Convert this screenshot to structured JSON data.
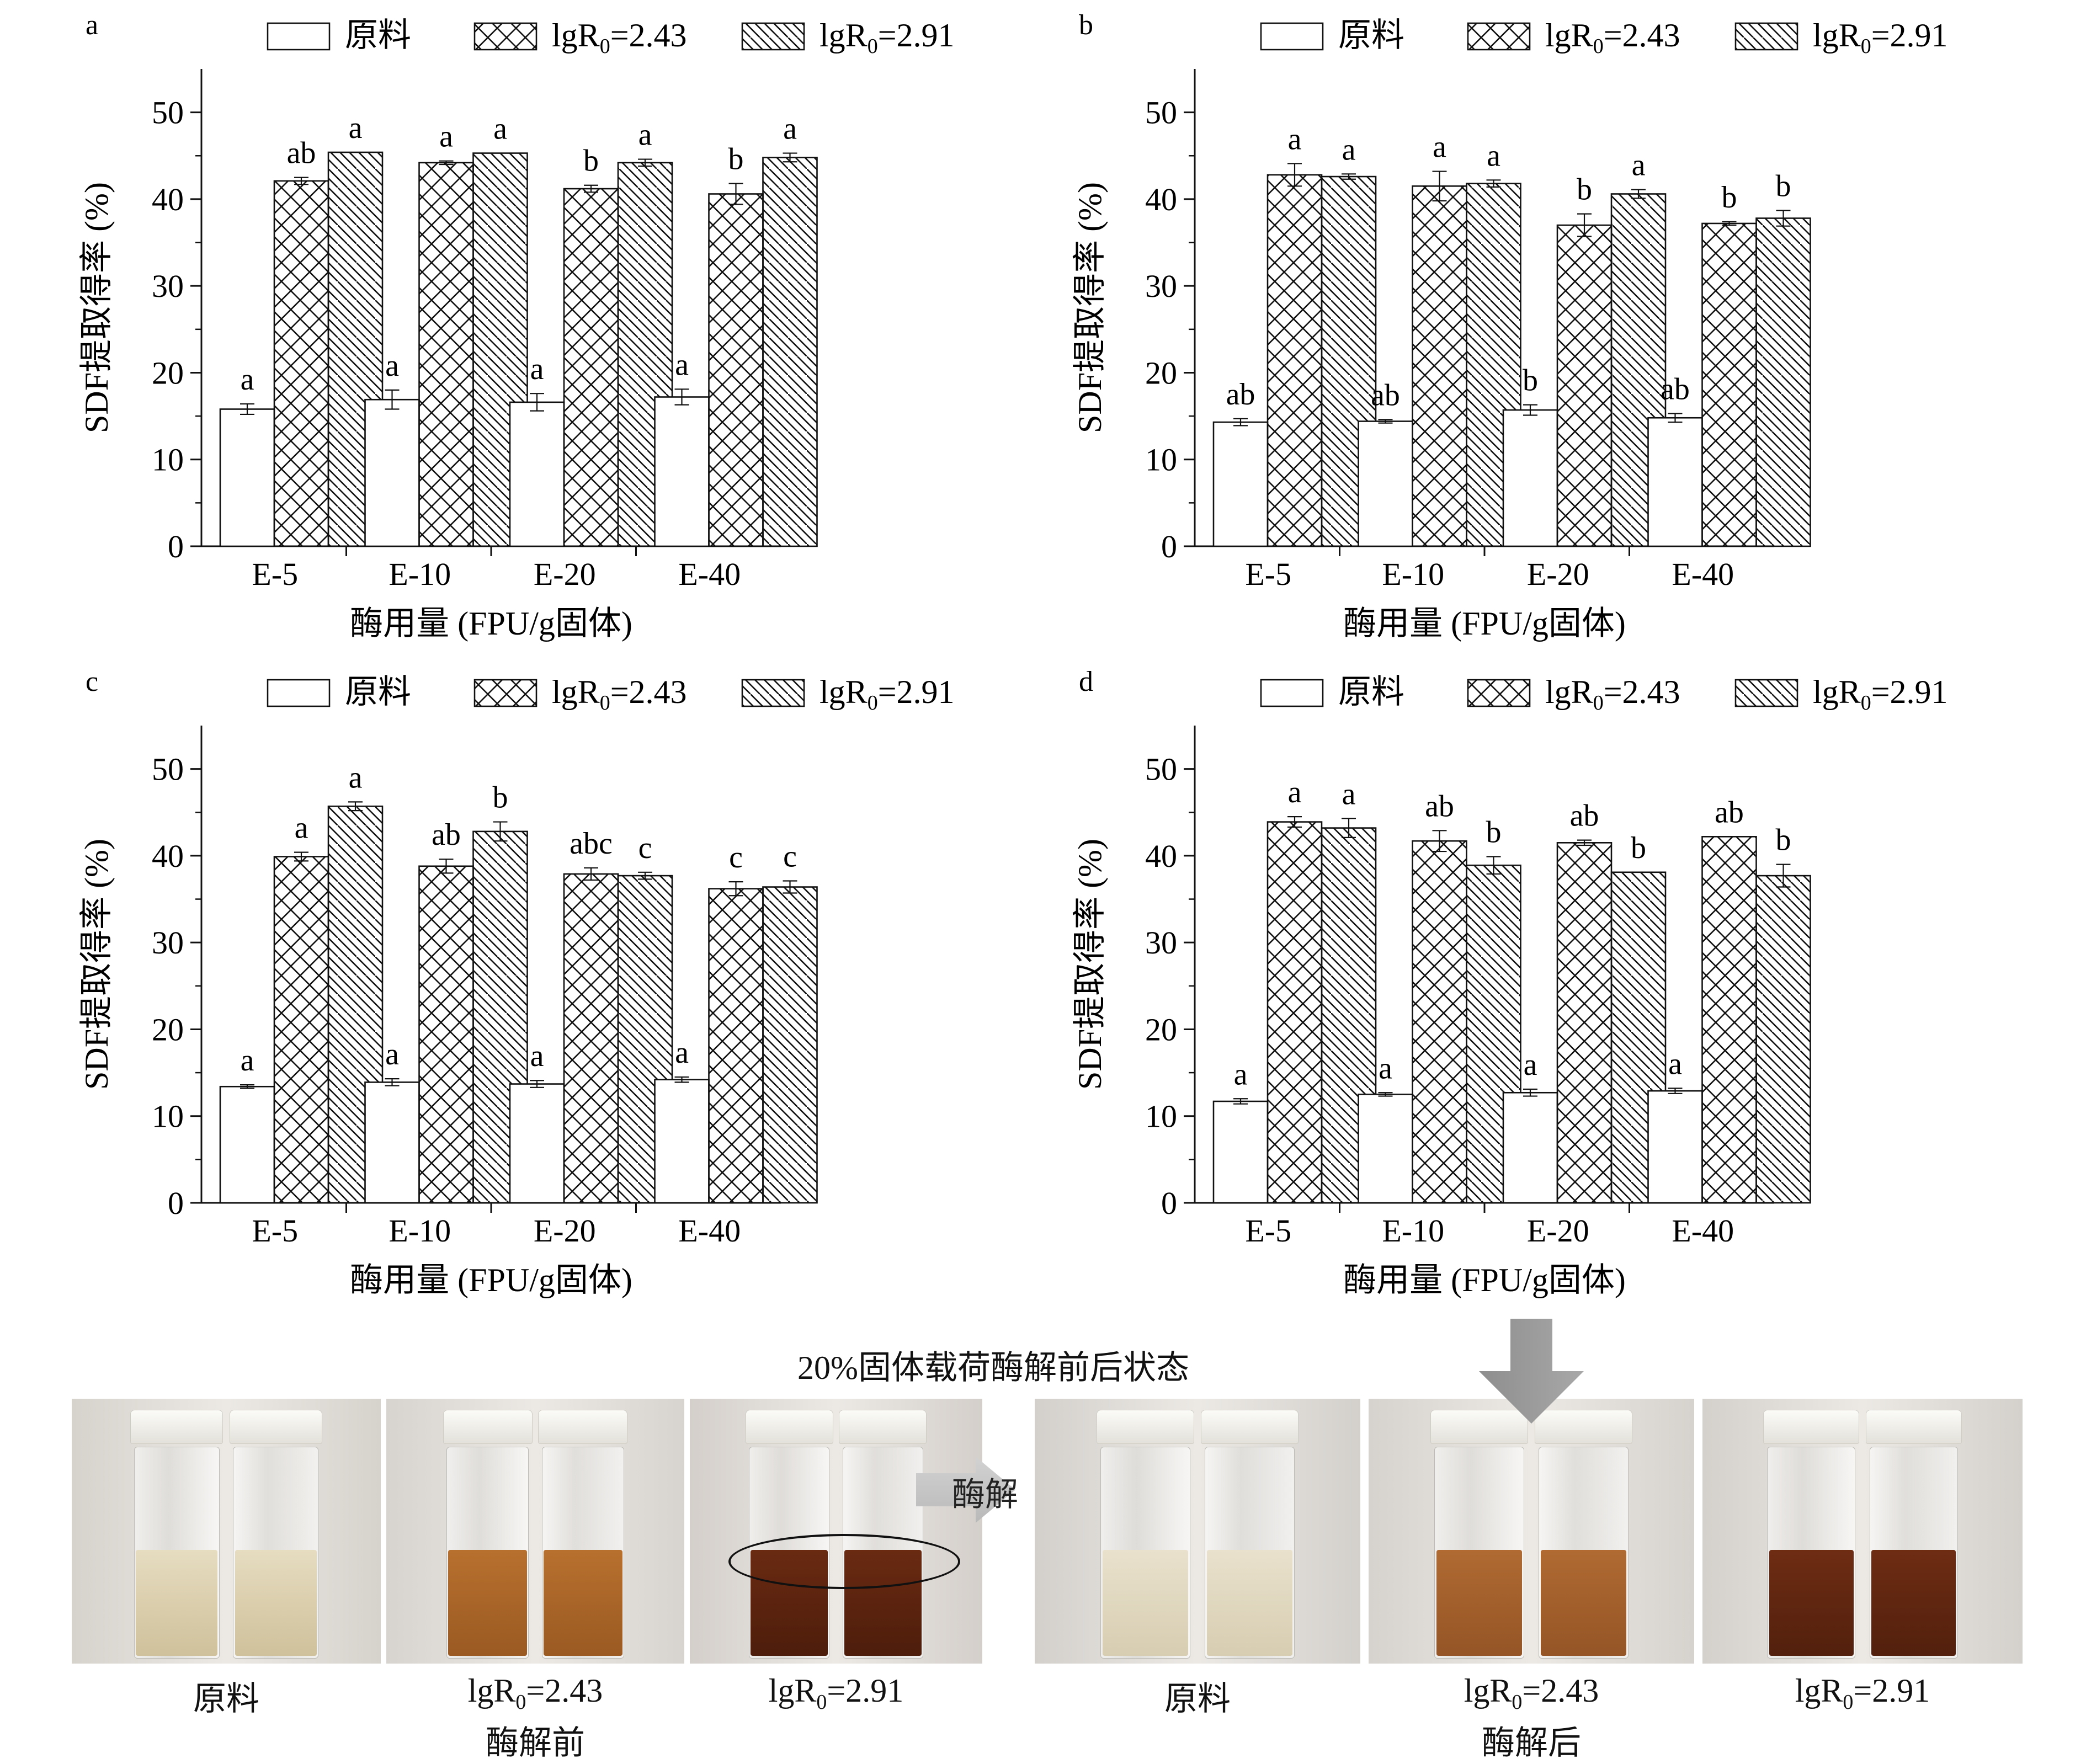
{
  "legend": {
    "items": [
      {
        "label": "原料",
        "pattern": "none"
      },
      {
        "label_main": "lgR",
        "label_sub": "0",
        "label_tail": "=2.43",
        "pattern": "crosshatch"
      },
      {
        "label_main": "lgR",
        "label_sub": "0",
        "label_tail": "=2.91",
        "pattern": "diagonal"
      }
    ]
  },
  "chart_data": [
    {
      "panel": "a",
      "type": "bar",
      "categories": [
        "E-5",
        "E-10",
        "E-20",
        "E-40"
      ],
      "xlabel": "酶用量 (FPU/g固体)",
      "ylabel": "SDF提取得率 (%)",
      "ylim": [
        0,
        55
      ],
      "yticks": [
        0,
        10,
        20,
        30,
        40,
        50
      ],
      "series": [
        {
          "name": "原料",
          "values": [
            15.8,
            16.9,
            16.6,
            17.2
          ],
          "errors": [
            0.6,
            1.1,
            1.0,
            0.9
          ],
          "letters": [
            "a",
            "a",
            "a",
            "a"
          ]
        },
        {
          "name": "lgR0=2.43",
          "values": [
            42.1,
            44.2,
            41.2,
            40.6
          ],
          "errors": [
            0.4,
            0.2,
            0.4,
            1.2
          ],
          "letters": [
            "ab",
            "a",
            "b",
            "b"
          ]
        },
        {
          "name": "lgR0=2.91",
          "values": [
            45.4,
            45.3,
            44.2,
            44.8
          ],
          "errors": [
            0.0,
            0.0,
            0.4,
            0.5
          ],
          "letters": [
            "a",
            "a",
            "a",
            "a"
          ]
        }
      ]
    },
    {
      "panel": "b",
      "type": "bar",
      "categories": [
        "E-5",
        "E-10",
        "E-20",
        "E-40"
      ],
      "xlabel": "酶用量 (FPU/g固体)",
      "ylabel": "SDF提取得率 (%)",
      "ylim": [
        0,
        55
      ],
      "yticks": [
        0,
        10,
        20,
        30,
        40,
        50
      ],
      "series": [
        {
          "name": "原料",
          "values": [
            14.3,
            14.4,
            15.7,
            14.8
          ],
          "errors": [
            0.4,
            0.2,
            0.6,
            0.5
          ],
          "letters": [
            "ab",
            "ab",
            "b",
            "ab"
          ]
        },
        {
          "name": "lgR0=2.43",
          "values": [
            42.8,
            41.5,
            37.0,
            37.2
          ],
          "errors": [
            1.3,
            1.7,
            1.3,
            0.2
          ],
          "letters": [
            "a",
            "a",
            "b",
            "b"
          ]
        },
        {
          "name": "lgR0=2.91",
          "values": [
            42.6,
            41.8,
            40.6,
            37.8
          ],
          "errors": [
            0.3,
            0.4,
            0.5,
            0.9
          ],
          "letters": [
            "a",
            "a",
            "a",
            "b"
          ]
        }
      ]
    },
    {
      "panel": "c",
      "type": "bar",
      "categories": [
        "E-5",
        "E-10",
        "E-20",
        "E-40"
      ],
      "xlabel": "酶用量 (FPU/g固体)",
      "ylabel": "SDF提取得率 (%)",
      "ylim": [
        0,
        55
      ],
      "yticks": [
        0,
        10,
        20,
        30,
        40,
        50
      ],
      "series": [
        {
          "name": "原料",
          "values": [
            13.4,
            13.9,
            13.7,
            14.2
          ],
          "errors": [
            0.2,
            0.4,
            0.4,
            0.3
          ],
          "letters": [
            "a",
            "a",
            "a",
            "a"
          ]
        },
        {
          "name": "lgR0=2.43",
          "values": [
            39.9,
            38.8,
            37.9,
            36.2
          ],
          "errors": [
            0.5,
            0.8,
            0.7,
            0.8
          ],
          "letters": [
            "a",
            "ab",
            "abc",
            "c"
          ]
        },
        {
          "name": "lgR0=2.91",
          "values": [
            45.7,
            42.8,
            37.7,
            36.4
          ],
          "errors": [
            0.5,
            1.1,
            0.4,
            0.7
          ],
          "letters": [
            "a",
            "b",
            "c",
            "c"
          ]
        }
      ]
    },
    {
      "panel": "d",
      "type": "bar",
      "categories": [
        "E-5",
        "E-10",
        "E-20",
        "E-40"
      ],
      "xlabel": "酶用量 (FPU/g固体)",
      "ylabel": "SDF提取得率 (%)",
      "ylim": [
        0,
        55
      ],
      "yticks": [
        0,
        10,
        20,
        30,
        40,
        50
      ],
      "series": [
        {
          "name": "原料",
          "values": [
            11.7,
            12.5,
            12.7,
            12.9
          ],
          "errors": [
            0.3,
            0.2,
            0.4,
            0.3
          ],
          "letters": [
            "a",
            "a",
            "a",
            "a"
          ]
        },
        {
          "name": "lgR0=2.43",
          "values": [
            43.9,
            41.7,
            41.5,
            42.2
          ],
          "errors": [
            0.6,
            1.2,
            0.3,
            0.0
          ],
          "letters": [
            "a",
            "ab",
            "ab",
            "ab"
          ]
        },
        {
          "name": "lgR0=2.91",
          "values": [
            43.2,
            38.9,
            38.1,
            37.7
          ],
          "errors": [
            1.1,
            1.0,
            0.0,
            1.3
          ],
          "letters": [
            "a",
            "b",
            "b",
            "b"
          ]
        }
      ]
    }
  ],
  "photos": {
    "title": "20%固体载荷酶解前后状态",
    "arrow_label": "酶解",
    "group_before": "酶解前",
    "group_after": "酶解后",
    "tiles": [
      {
        "caption": "原料",
        "liquid": "#e6dcc0",
        "liquid_dark": "#cfc19b",
        "bg": "#d6d2cc"
      },
      {
        "caption_main": "lgR",
        "caption_sub": "0",
        "caption_tail": "=2.43",
        "liquid": "#b8702e",
        "liquid_dark": "#9a5a22",
        "bg": "#d7d3cf"
      },
      {
        "caption_main": "lgR",
        "caption_sub": "0",
        "caption_tail": "=2.91",
        "liquid": "#6a2a12",
        "liquid_dark": "#4d1d0b",
        "bg": "#d4cfca"
      },
      {
        "caption": "原料",
        "liquid": "#e9e1cc",
        "liquid_dark": "#d7cdb2",
        "bg": "#d3d0cc"
      },
      {
        "caption_main": "lgR",
        "caption_sub": "0",
        "caption_tail": "=2.43",
        "liquid": "#b06a32",
        "liquid_dark": "#955526",
        "bg": "#d6d2cd"
      },
      {
        "caption_main": "lgR",
        "caption_sub": "0",
        "caption_tail": "=2.91",
        "liquid": "#6e2c13",
        "liquid_dark": "#52200d",
        "bg": "#d4d0cb"
      }
    ]
  }
}
